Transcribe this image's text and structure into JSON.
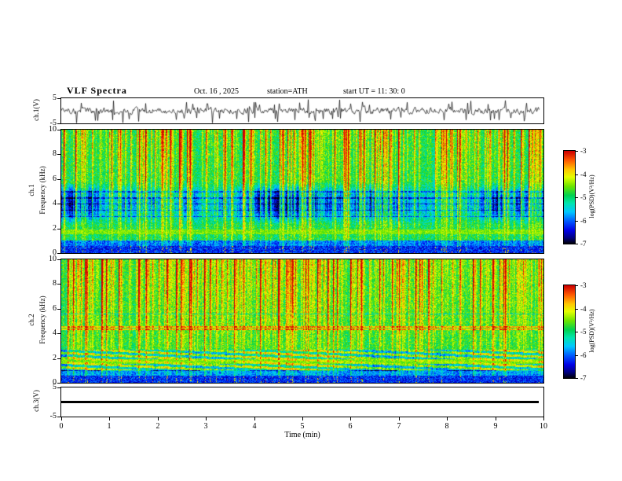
{
  "header": {
    "title": "VLF Spectra",
    "date": "Oct. 16 , 2025",
    "station": "station=ATH",
    "start_ut": "start UT =  11: 30: 0"
  },
  "panels": {
    "ch1_wave": {
      "label": "ch.1(V)",
      "ymax": "5",
      "ymin": "-5"
    },
    "spec1": {
      "channel": "ch.1",
      "ylabel": "Frequency (kHz)",
      "yticks": [
        "10",
        "8",
        "6",
        "4",
        "2",
        "0"
      ]
    },
    "spec2": {
      "channel": "ch.2",
      "ylabel": "Frequency (kHz)",
      "yticks": [
        "10",
        "8",
        "6",
        "4",
        "2",
        "0"
      ]
    },
    "ch3_wave": {
      "label": "ch.3(V)",
      "ymax": "5",
      "ymin": "-5"
    }
  },
  "colorbars": {
    "label": "log(PSD)(V²/Hz)",
    "ticks": [
      "-3",
      "-4",
      "-5",
      "-6",
      "-7"
    ]
  },
  "xaxis": {
    "label": "Time (min)",
    "ticks": [
      "0",
      "1",
      "2",
      "3",
      "4",
      "5",
      "6",
      "7",
      "8",
      "9",
      "10"
    ]
  },
  "chart_data": [
    {
      "type": "line",
      "title": "ch.1(V) time series",
      "xlabel": "Time (min)",
      "ylabel": "ch.1(V)",
      "xlim": [
        0,
        10
      ],
      "ylim": [
        -5,
        5
      ],
      "yticks": [
        5,
        -5
      ],
      "description": "dense broadband noisy waveform, typical amplitude ±2 V with frequent impulsive spikes reaching ±5 V across the full 0–10 min record"
    },
    {
      "type": "heatmap",
      "title": "ch.1 spectrogram",
      "xlabel": "Time (min)",
      "ylabel": "Frequency (kHz)",
      "xlim": [
        0,
        10
      ],
      "ylim": [
        0,
        10
      ],
      "zlabel": "log(PSD)(V²/Hz)",
      "zlim": [
        -7,
        -3
      ],
      "colorbar_ticks": [
        -3,
        -4,
        -5,
        -6,
        -7
      ],
      "colormap": "jet-like: black/blue (-7) → cyan → green (-5) → yellow → red (-3)",
      "features": [
        "dense vertical broadband sferic streaks (yellow/red) spanning all frequencies, strongest above ~6 kHz",
        "suppressed power band (blue) ~2.5–5.5 kHz with thin horizontal striations",
        "bright yellow-green enhancement near 1.6–2 kHz",
        "very low power (dark blue/black) below ~1 kHz"
      ]
    },
    {
      "type": "heatmap",
      "title": "ch.2 spectrogram",
      "xlabel": "Time (min)",
      "ylabel": "Frequency (kHz)",
      "xlim": [
        0,
        10
      ],
      "ylim": [
        0,
        10
      ],
      "zlabel": "log(PSD)(V²/Hz)",
      "zlim": [
        -7,
        -3
      ],
      "colorbar_ticks": [
        -3,
        -4,
        -5,
        -6,
        -7
      ],
      "colormap": "jet-like: black/blue (-7) → cyan → green (-5) → yellow → red (-3)",
      "features": [
        "green speckled background with dense vertical red/yellow sferic streaks at all frequencies",
        "textured dark/orange horizontal banding ~1–2.5 kHz",
        "narrow enhanced (reddish) lines near 4.5 kHz",
        "very low power (dark) below ~1 kHz"
      ]
    },
    {
      "type": "line",
      "title": "ch.3(V) time series",
      "xlabel": "Time (min)",
      "ylabel": "ch.3(V)",
      "xlim": [
        0,
        10
      ],
      "ylim": [
        -5,
        5
      ],
      "yticks": [
        5,
        -5
      ],
      "values": "constant 0",
      "description": "flat thick black line at 0 V for the whole record"
    }
  ]
}
